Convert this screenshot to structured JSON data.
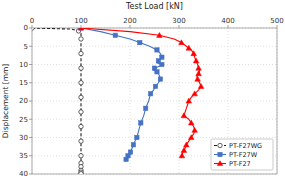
{
  "chart_data": {
    "type": "line",
    "xlabel": "Test Load [kN]",
    "ylabel": "Displacement [mm]",
    "xlim": [
      0,
      500
    ],
    "ylim": [
      40,
      0
    ],
    "xticks": [
      0,
      100,
      200,
      300,
      400,
      500
    ],
    "yticks": [
      0,
      5,
      10,
      15,
      20,
      25,
      30,
      35,
      40
    ],
    "grid": true,
    "legend": "lower right",
    "series": [
      {
        "name": "PT-F27WG",
        "color": "#222222",
        "marker": "open-circle",
        "line_style": "dashed",
        "x": [
          0,
          80,
          95,
          100,
          100,
          100,
          100,
          100,
          100,
          100,
          100,
          100,
          100,
          100,
          100,
          100,
          100,
          100,
          100,
          100,
          100,
          100,
          100,
          100,
          100,
          100,
          100,
          100,
          100,
          100,
          100,
          100
        ],
        "values": [
          0,
          0.3,
          0.8,
          1.5,
          3,
          5,
          7,
          9,
          11,
          13,
          15,
          17,
          19,
          21,
          23,
          25,
          27,
          29,
          31,
          33,
          35,
          36,
          37,
          37.5,
          38,
          38.5,
          39,
          39.2,
          39.5,
          39.7,
          39.9,
          40
        ]
      },
      {
        "name": "PT-F27W",
        "color": "#4472C4",
        "marker": "square",
        "line_style": "solid",
        "x": [
          100,
          140,
          170,
          200,
          220,
          240,
          255,
          262,
          265,
          263,
          258,
          255,
          265,
          260,
          250,
          248,
          255,
          260,
          262,
          258,
          252,
          248,
          242,
          238,
          232,
          228,
          222,
          218,
          214,
          210,
          207,
          204,
          201,
          198,
          196,
          194,
          192,
          190
        ],
        "values": [
          0,
          1,
          2,
          3,
          4,
          5,
          6,
          7,
          8,
          8.5,
          9,
          9.5,
          10,
          10.5,
          11,
          11.5,
          12,
          13,
          14,
          15,
          16,
          17,
          18,
          20,
          22,
          24,
          26,
          28,
          30,
          31,
          32,
          33,
          34,
          34.5,
          35,
          35.5,
          36,
          36.5
        ]
      },
      {
        "name": "PT-F27",
        "color": "#FF0000",
        "marker": "triangle",
        "line_style": "solid",
        "x": [
          100,
          200,
          260,
          290,
          305,
          315,
          320,
          325,
          330,
          332,
          335,
          338,
          340,
          342,
          340,
          336,
          338,
          342,
          345,
          340,
          332,
          325,
          320,
          315,
          310,
          320,
          325,
          330,
          332,
          330,
          325,
          320,
          315,
          312,
          310,
          308,
          306,
          305
        ],
        "values": [
          0,
          1,
          2,
          3,
          4,
          5,
          5.5,
          6,
          7,
          8,
          9,
          10,
          11,
          12,
          12.5,
          13,
          14,
          15,
          16,
          17,
          18,
          19,
          20,
          22,
          24,
          25,
          26,
          27,
          28,
          29,
          30,
          31,
          32,
          33,
          33.5,
          34,
          35,
          35.5
        ]
      }
    ]
  }
}
